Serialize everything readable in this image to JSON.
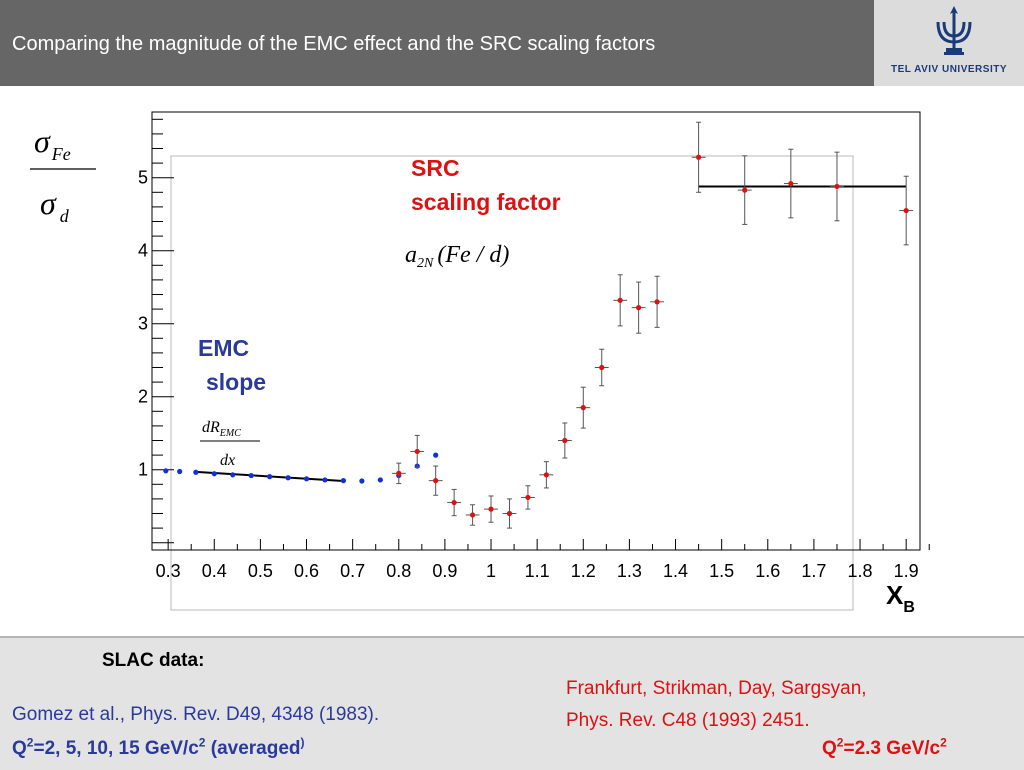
{
  "header": {
    "title": "Comparing the magnitude of the EMC effect and the SRC scaling factors",
    "logo_text": "TEL AVIV UNIVERSITY"
  },
  "chart_data": {
    "type": "scatter",
    "title": "",
    "ylabel": {
      "num_sym": "σ",
      "num_sub": "Fe",
      "den_sym": "σ",
      "den_sub": "d"
    },
    "xlabel": {
      "main": "X",
      "sub": "B"
    },
    "xlim": [
      0.265,
      1.93
    ],
    "ylim": [
      -0.1,
      5.9
    ],
    "grid": false,
    "x_ticks": [
      0.3,
      0.4,
      0.5,
      0.6,
      0.7,
      0.8,
      0.9,
      1,
      1.1,
      1.2,
      1.3,
      1.4,
      1.5,
      1.6,
      1.7,
      1.8,
      1.9
    ],
    "x_tick_labels": [
      "0.3",
      "0.4",
      "0.5",
      "0.6",
      "0.7",
      "0.8",
      "0.9",
      "1",
      "1.1",
      "1.2",
      "1.3",
      "1.4",
      "1.5",
      "1.6",
      "1.7",
      "1.8",
      "1.9"
    ],
    "y_ticks": [
      1,
      2,
      3,
      4,
      5
    ],
    "y_tick_labels": [
      "1",
      "2",
      "3",
      "4",
      "5"
    ],
    "annotations": {
      "emc_label_1": "EMC",
      "emc_label_2": "slope",
      "emc_formula_num": "dR",
      "emc_formula_num_sub": "EMC",
      "emc_formula_den": "dx",
      "src_label_1": "SRC",
      "src_label_2": "scaling factor",
      "src_formula_a": "a",
      "src_formula_sub": "2N",
      "src_formula_rest": "(Fe / d)"
    },
    "series": [
      {
        "name": "",
        "color": "#1030e0",
        "x": [
          0.295,
          0.325,
          0.36,
          0.4,
          0.44,
          0.48,
          0.52,
          0.56,
          0.6,
          0.64,
          0.68,
          0.72,
          0.76,
          0.8,
          0.84,
          0.88
        ],
        "y": [
          0.985,
          0.975,
          0.965,
          0.945,
          0.93,
          0.92,
          0.905,
          0.89,
          0.875,
          0.86,
          0.85,
          0.845,
          0.86,
          0.92,
          1.05,
          1.2
        ]
      },
      {
        "name": "",
        "color": "#e01010",
        "x": [
          0.8,
          0.84,
          0.88,
          0.92,
          0.96,
          1.0,
          1.04,
          1.08,
          1.12,
          1.16,
          1.2,
          1.24,
          1.28,
          1.32,
          1.36,
          1.45,
          1.55,
          1.65,
          1.75,
          1.9
        ],
        "y": [
          0.95,
          1.25,
          0.85,
          0.55,
          0.38,
          0.46,
          0.4,
          0.62,
          0.93,
          1.4,
          1.85,
          2.4,
          3.32,
          3.22,
          3.3,
          5.28,
          4.83,
          4.92,
          4.88,
          4.55
        ],
        "yerr": [
          0.14,
          0.22,
          0.2,
          0.18,
          0.14,
          0.18,
          0.2,
          0.16,
          0.18,
          0.24,
          0.28,
          0.25,
          0.35,
          0.35,
          0.35,
          0.48,
          0.47,
          0.47,
          0.47,
          0.47
        ],
        "xerr": [
          0.015,
          0.015,
          0.015,
          0.015,
          0.015,
          0.015,
          0.015,
          0.015,
          0.015,
          0.015,
          0.015,
          0.015,
          0.015,
          0.015,
          0.015,
          0.015,
          0.015,
          0.015,
          0.015,
          0.015
        ]
      }
    ],
    "fit_lines": [
      {
        "name": "",
        "color": "#000000",
        "x": [
          0.36,
          0.68
        ],
        "y": [
          0.97,
          0.845
        ]
      },
      {
        "name": "",
        "color": "#000000",
        "x": [
          1.45,
          1.9
        ],
        "y": [
          4.88,
          4.88
        ]
      }
    ]
  },
  "footer": {
    "slac_label": "SLAC data:",
    "gomez_ref": "Gomez et al.,  Phys. Rev. D49, 4348 (1983).",
    "q2_left_a": "Q",
    "q2_left_b": "2",
    "q2_left_c": "=2, 5, 10, 15 GeV/c",
    "q2_left_d": "2",
    "q2_left_e": " (averaged",
    "q2_left_f": ")",
    "frankfurt_line1": "Frankfurt, Strikman, Day, Sargsyan,",
    "frankfurt_line2": "Phys. Rev. C48 (1993) 2451.",
    "q2_right_a": "Q",
    "q2_right_b": "2",
    "q2_right_c": "=2.3 GeV/c",
    "q2_right_d": "2",
    "colors": {
      "blue": "#2a3a9a",
      "red": "#dd1111",
      "header": "#666666"
    }
  }
}
